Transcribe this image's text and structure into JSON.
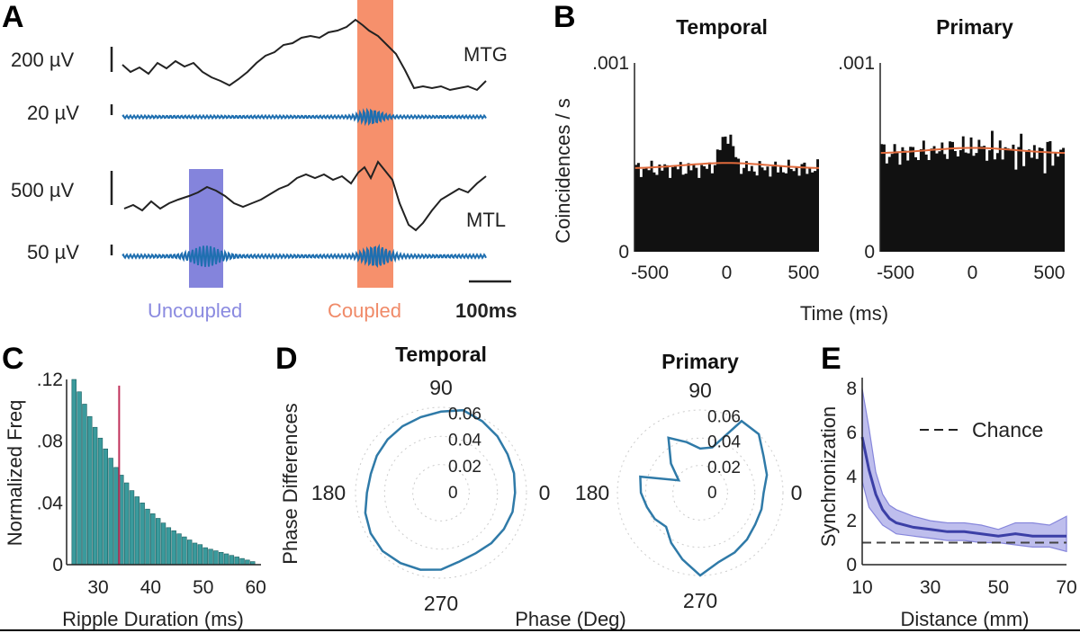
{
  "panels": {
    "A": "A",
    "B": "B",
    "C": "C",
    "D": "D",
    "E": "E"
  },
  "panelA": {
    "scale_labels": [
      "200 µV",
      "20 µV",
      "500 µV",
      "50 µV"
    ],
    "region_labels": [
      "MTG",
      "MTL"
    ],
    "uncoupled_label": "Uncoupled",
    "coupled_label": "Coupled",
    "timebar_label": "100ms",
    "colors": {
      "uncoupled": "#6f6fd6",
      "coupled": "#f47c52",
      "filtered": "#1f6fb0",
      "raw": "#222222"
    }
  },
  "chart_data": [
    {
      "id": "B-temporal",
      "type": "bar",
      "title": "Temporal",
      "ylabel": "Coincidences / s",
      "xlabel": "Time (ms)",
      "xlim": [
        -600,
        600
      ],
      "ylim": [
        0,
        0.001
      ],
      "xticks": [
        -500,
        0,
        500
      ],
      "yticks": [
        {
          "v": 0,
          "label": "0"
        },
        {
          "v": 0.001,
          "label": ".001"
        }
      ],
      "baseline": 0.00044,
      "peak": 0.00062,
      "curve_color": "#e06a3c"
    },
    {
      "id": "B-primary",
      "type": "bar",
      "title": "Primary",
      "xlim": [
        -600,
        600
      ],
      "ylim": [
        0,
        0.001
      ],
      "xticks": [
        -500,
        0,
        500
      ],
      "yticks": [
        {
          "v": 0,
          "label": "0"
        },
        {
          "v": 0.001,
          "label": ".001"
        }
      ],
      "baseline": 0.00052,
      "curve_color": "#e06a3c"
    },
    {
      "id": "C",
      "type": "bar",
      "xlabel": "Ripple Duration (ms)",
      "ylabel": "Normalized Freq",
      "xlim": [
        24,
        61
      ],
      "ylim": [
        0,
        0.12
      ],
      "xticks": [
        30,
        40,
        50,
        60
      ],
      "yticks": [
        {
          "v": 0,
          "label": "0"
        },
        {
          "v": 0.04,
          "label": ".04"
        },
        {
          "v": 0.08,
          "label": ".08"
        },
        {
          "v": 0.12,
          "label": ".12"
        }
      ],
      "bar_start": 25,
      "bar_width": 1,
      "values": [
        0.12,
        0.112,
        0.104,
        0.096,
        0.089,
        0.082,
        0.075,
        0.069,
        0.063,
        0.058,
        0.053,
        0.048,
        0.044,
        0.04,
        0.036,
        0.033,
        0.03,
        0.027,
        0.024,
        0.022,
        0.02,
        0.018,
        0.016,
        0.014,
        0.013,
        0.011,
        0.01,
        0.009,
        0.008,
        0.007,
        0.006,
        0.005,
        0.004,
        0.003,
        0.002
      ],
      "marker_x": 34,
      "colors": {
        "bar": "#3a9a9c",
        "marker": "#c0305a"
      }
    },
    {
      "id": "D-temporal",
      "type": "polar",
      "title": "Temporal",
      "rlabels": [
        "0.06",
        "0.04",
        "0.02",
        "0"
      ],
      "angle_labels": [
        "90",
        "180",
        "0",
        "270"
      ],
      "rmax": 0.06,
      "r": [
        0.052,
        0.053,
        0.054,
        0.056,
        0.058,
        0.06,
        0.057,
        0.055,
        0.054,
        0.053,
        0.052,
        0.051,
        0.052,
        0.055,
        0.057,
        0.058,
        0.057,
        0.056,
        0.054,
        0.05,
        0.049,
        0.05,
        0.051,
        0.052
      ]
    },
    {
      "id": "D-primary",
      "type": "polar",
      "title": "Primary",
      "rlabels": [
        "0.06",
        "0.04",
        "0.02",
        "0"
      ],
      "angle_labels": [
        "90",
        "180",
        "0",
        "270"
      ],
      "rmax": 0.06,
      "r": [
        0.046,
        0.05,
        0.053,
        0.06,
        0.06,
        0.034,
        0.032,
        0.038,
        0.046,
        0.03,
        0.018,
        0.045,
        0.043,
        0.04,
        0.038,
        0.035,
        0.042,
        0.05,
        0.06,
        0.052,
        0.05,
        0.048,
        0.046,
        0.046
      ],
      "xlabel": "Phase (Deg)",
      "ylabel": "Phase Differences"
    },
    {
      "id": "E",
      "type": "line",
      "xlabel": "Distance (mm)",
      "ylabel": "Synchronization",
      "xlim": [
        10,
        70
      ],
      "ylim": [
        0,
        8.5
      ],
      "xticks": [
        10,
        30,
        50,
        70
      ],
      "yticks": [
        0,
        2,
        4,
        6,
        8
      ],
      "x": [
        10,
        12,
        14,
        16,
        18,
        20,
        25,
        30,
        35,
        40,
        45,
        50,
        55,
        60,
        65,
        70
      ],
      "series": [
        {
          "name": "mean",
          "values": [
            5.8,
            4.3,
            3.2,
            2.5,
            2.1,
            1.9,
            1.7,
            1.6,
            1.5,
            1.5,
            1.4,
            1.3,
            1.4,
            1.3,
            1.3,
            1.3
          ]
        },
        {
          "name": "upper",
          "values": [
            8.0,
            6.2,
            4.2,
            3.2,
            2.7,
            2.5,
            2.2,
            2.0,
            1.9,
            1.9,
            1.8,
            1.6,
            1.9,
            1.9,
            1.8,
            2.2
          ]
        },
        {
          "name": "lower",
          "values": [
            3.8,
            2.6,
            2.2,
            1.8,
            1.6,
            1.4,
            1.3,
            1.2,
            1.1,
            1.1,
            1.0,
            1.0,
            0.9,
            0.8,
            0.8,
            0.6
          ]
        }
      ],
      "chance": 1.0,
      "legend": "Chance",
      "colors": {
        "line": "#3b3fa6",
        "band": "#b8b8ec"
      }
    }
  ]
}
